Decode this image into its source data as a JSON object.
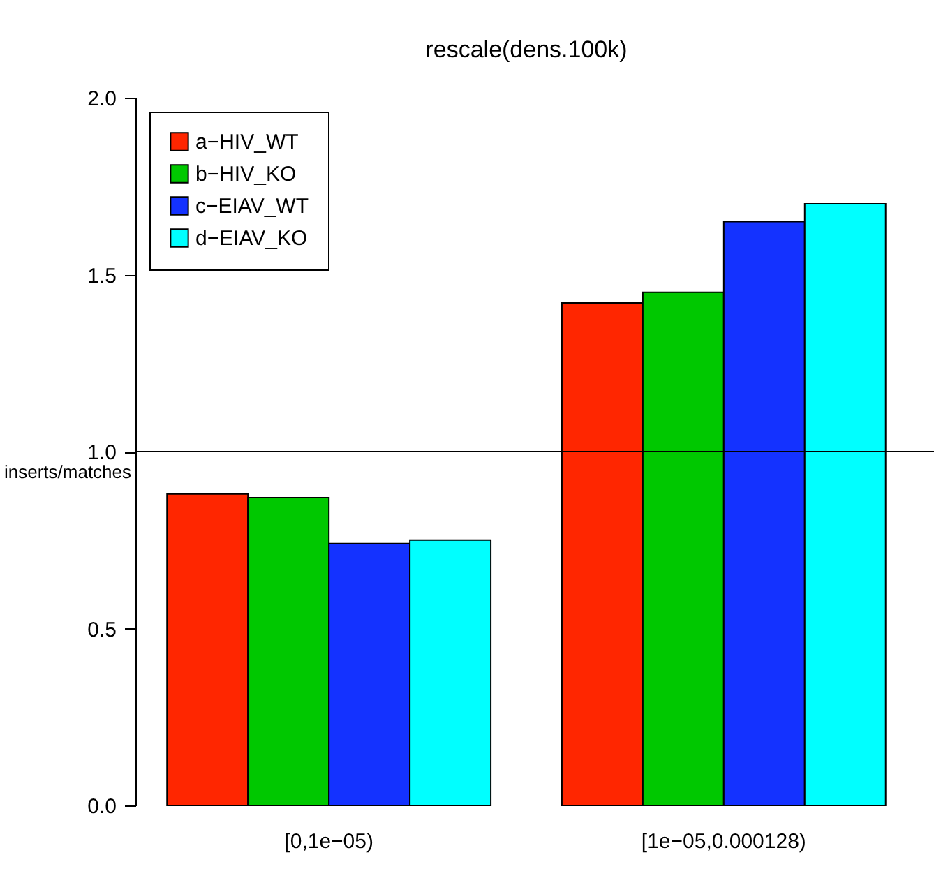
{
  "chart_data": {
    "type": "bar",
    "title": "rescale(dens.100k)",
    "ylabel": "inserts/matches",
    "categories": [
      "[0,1e−05)",
      "[1e−05,0.000128)"
    ],
    "series": [
      {
        "name": "a−HIV_WT",
        "color": "#ff2600",
        "values": [
          0.88,
          1.42
        ]
      },
      {
        "name": "b−HIV_KO",
        "color": "#00c800",
        "values": [
          0.87,
          1.45
        ]
      },
      {
        "name": "c−EIAV_WT",
        "color": "#1432ff",
        "values": [
          0.74,
          1.65
        ]
      },
      {
        "name": "d−EIAV_KO",
        "color": "#00ffff",
        "values": [
          0.75,
          1.7
        ]
      }
    ],
    "ylim": [
      0,
      2
    ],
    "yticks": [
      {
        "value": 0,
        "label": "0.0"
      },
      0.5,
      {
        "value": 1,
        "label": "1.0"
      },
      1.5,
      {
        "value": 2,
        "label": "2.0"
      }
    ],
    "grid": false,
    "legend": "top left",
    "ref_lines": [
      {
        "axis": "y",
        "value": 1
      }
    ]
  }
}
